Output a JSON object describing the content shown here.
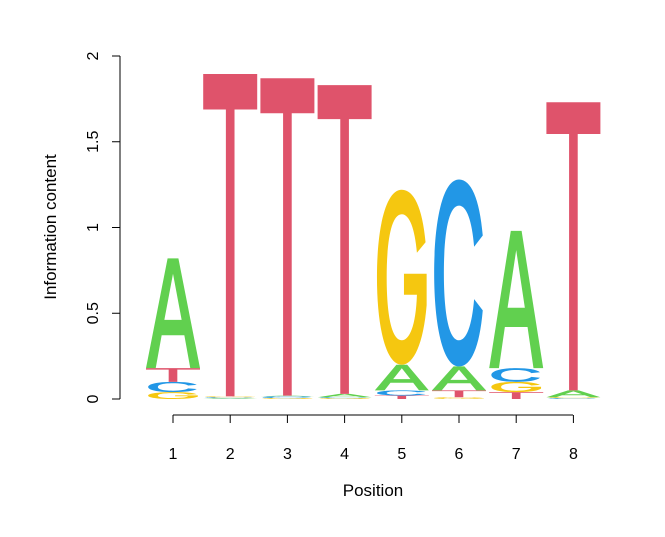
{
  "chart_data": {
    "type": "sequence-logo",
    "xlabel": "Position",
    "ylabel": "Information content",
    "x_ticks": [
      "1",
      "2",
      "3",
      "4",
      "5",
      "6",
      "7",
      "8"
    ],
    "y_ticks": [
      "0",
      "0.5",
      "1",
      "1.5",
      "2"
    ],
    "ylim": [
      0,
      2
    ],
    "colors": {
      "A": "#61D04F",
      "C": "#2297E6",
      "G": "#F5C710",
      "T": "#DF536B"
    },
    "positions": [
      {
        "position": 1,
        "stack": [
          {
            "base": "G",
            "height": 0.04
          },
          {
            "base": "C",
            "height": 0.06
          },
          {
            "base": "T",
            "height": 0.08
          },
          {
            "base": "A",
            "height": 0.64
          }
        ]
      },
      {
        "position": 2,
        "stack": [
          {
            "base": "A",
            "height": 0.005
          },
          {
            "base": "C",
            "height": 0.005
          },
          {
            "base": "G",
            "height": 0.005
          },
          {
            "base": "T",
            "height": 1.88
          }
        ]
      },
      {
        "position": 3,
        "stack": [
          {
            "base": "G",
            "height": 0.005
          },
          {
            "base": "C",
            "height": 0.01
          },
          {
            "base": "A",
            "height": 0.005
          },
          {
            "base": "T",
            "height": 1.85
          }
        ]
      },
      {
        "position": 4,
        "stack": [
          {
            "base": "G",
            "height": 0.005
          },
          {
            "base": "C",
            "height": 0.005
          },
          {
            "base": "A",
            "height": 0.02
          },
          {
            "base": "T",
            "height": 1.8
          }
        ]
      },
      {
        "position": 5,
        "stack": [
          {
            "base": "T",
            "height": 0.02
          },
          {
            "base": "C",
            "height": 0.03
          },
          {
            "base": "A",
            "height": 0.15
          },
          {
            "base": "G",
            "height": 1.02
          }
        ]
      },
      {
        "position": 6,
        "stack": [
          {
            "base": "G",
            "height": 0.01
          },
          {
            "base": "T",
            "height": 0.04
          },
          {
            "base": "A",
            "height": 0.14
          },
          {
            "base": "C",
            "height": 1.09
          }
        ]
      },
      {
        "position": 7,
        "stack": [
          {
            "base": "T",
            "height": 0.04
          },
          {
            "base": "G",
            "height": 0.06
          },
          {
            "base": "C",
            "height": 0.08
          },
          {
            "base": "A",
            "height": 0.8
          }
        ]
      },
      {
        "position": 8,
        "stack": [
          {
            "base": "C",
            "height": 0.005
          },
          {
            "base": "G",
            "height": 0.005
          },
          {
            "base": "A",
            "height": 0.04
          },
          {
            "base": "T",
            "height": 1.68
          }
        ]
      }
    ]
  }
}
